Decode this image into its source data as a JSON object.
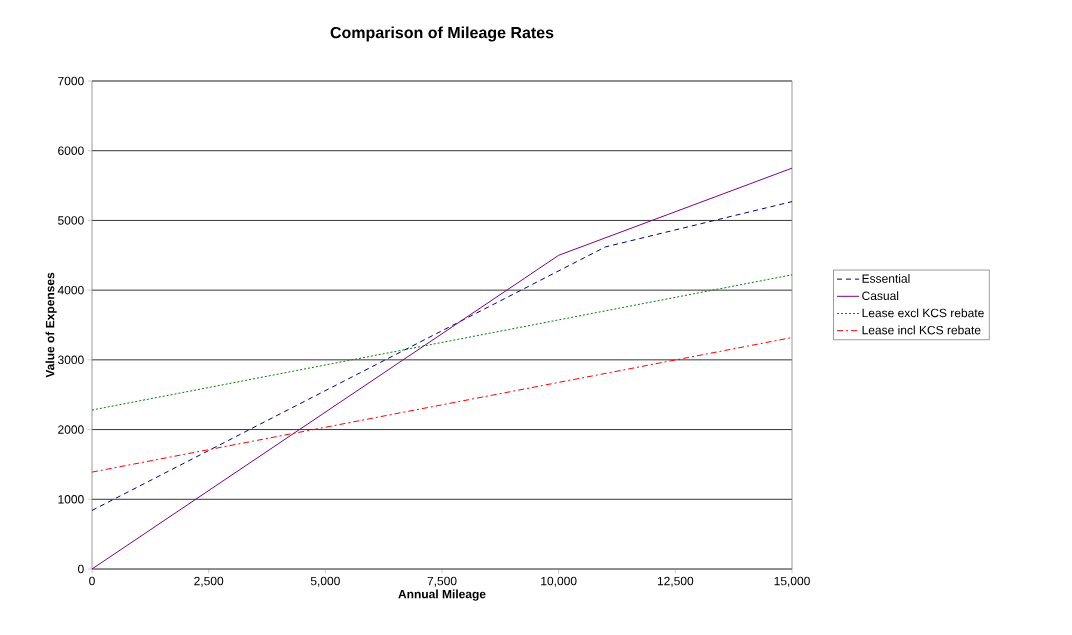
{
  "chart_data": {
    "type": "line",
    "title": "Comparison of Mileage Rates",
    "xlabel": "Annual Mileage",
    "ylabel": "Value of Expenses",
    "xlim": [
      0,
      15000
    ],
    "ylim": [
      0,
      7000
    ],
    "xticks": [
      0,
      {
        "value": 2500,
        "label": "2,500"
      },
      {
        "value": 5000,
        "label": "5,000"
      },
      {
        "value": 7500,
        "label": "7,500"
      },
      {
        "value": 10000,
        "label": "10,000"
      },
      {
        "value": 12500,
        "label": "12,500"
      },
      {
        "value": 15000,
        "label": "15,000"
      }
    ],
    "yticks": [
      0,
      1000,
      2000,
      3000,
      4000,
      5000,
      6000,
      7000
    ],
    "grid": "y",
    "legend": "right",
    "marker": "none",
    "series": [
      {
        "name": "Essential",
        "color": "#000080",
        "line_style": "dashed",
        "x": [
          0,
          11000,
          15000
        ],
        "values": [
          840,
          4620,
          5270
        ]
      },
      {
        "name": "Casual",
        "color": "#800080",
        "line_style": "solid",
        "x": [
          0,
          10000,
          15000
        ],
        "values": [
          0,
          4500,
          5750
        ]
      },
      {
        "name": "Lease excl KCS rebate",
        "color": "#008000",
        "line_style": "dotted",
        "x": [
          0,
          15000
        ],
        "values": [
          2280,
          4220
        ]
      },
      {
        "name": "Lease incl KCS rebate",
        "color": "#ff0000",
        "line_style": "dashdot",
        "x": [
          0,
          15000
        ],
        "values": [
          1390,
          3320
        ]
      }
    ]
  }
}
